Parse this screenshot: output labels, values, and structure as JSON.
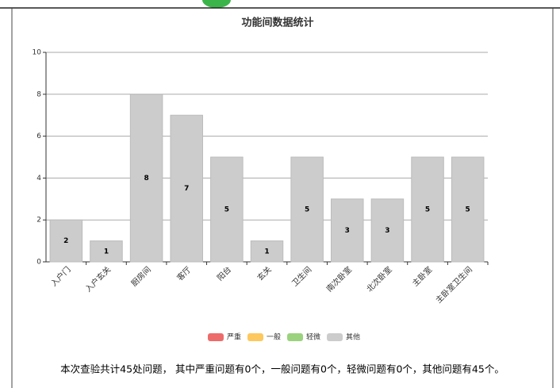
{
  "chart_data": {
    "type": "bar",
    "title": "功能间数据统计",
    "categories": [
      "入户门",
      "入户玄关",
      "厨房间",
      "客厅",
      "阳台",
      "玄关",
      "卫生间",
      "南次卧室",
      "北次卧室",
      "主卧室",
      "主卧室卫生间"
    ],
    "series": [
      {
        "name": "其他",
        "color": "#cccccc",
        "values": [
          2,
          1,
          8,
          7,
          5,
          1,
          5,
          3,
          3,
          5,
          5
        ]
      }
    ],
    "legend": [
      {
        "name": "严重",
        "color": "#ee6b6b"
      },
      {
        "name": "一般",
        "color": "#fdc85e"
      },
      {
        "name": "轻微",
        "color": "#9bd27e"
      },
      {
        "name": "其他",
        "color": "#cccccc"
      }
    ],
    "ylim": [
      0,
      10
    ],
    "yticks": [
      0,
      2,
      4,
      6,
      8,
      10
    ],
    "grid": true
  },
  "summary": "本次查验共计45处问题， 其中严重问题有0个，一般问题有0个，轻微问题有0个，其他问题有45个。"
}
